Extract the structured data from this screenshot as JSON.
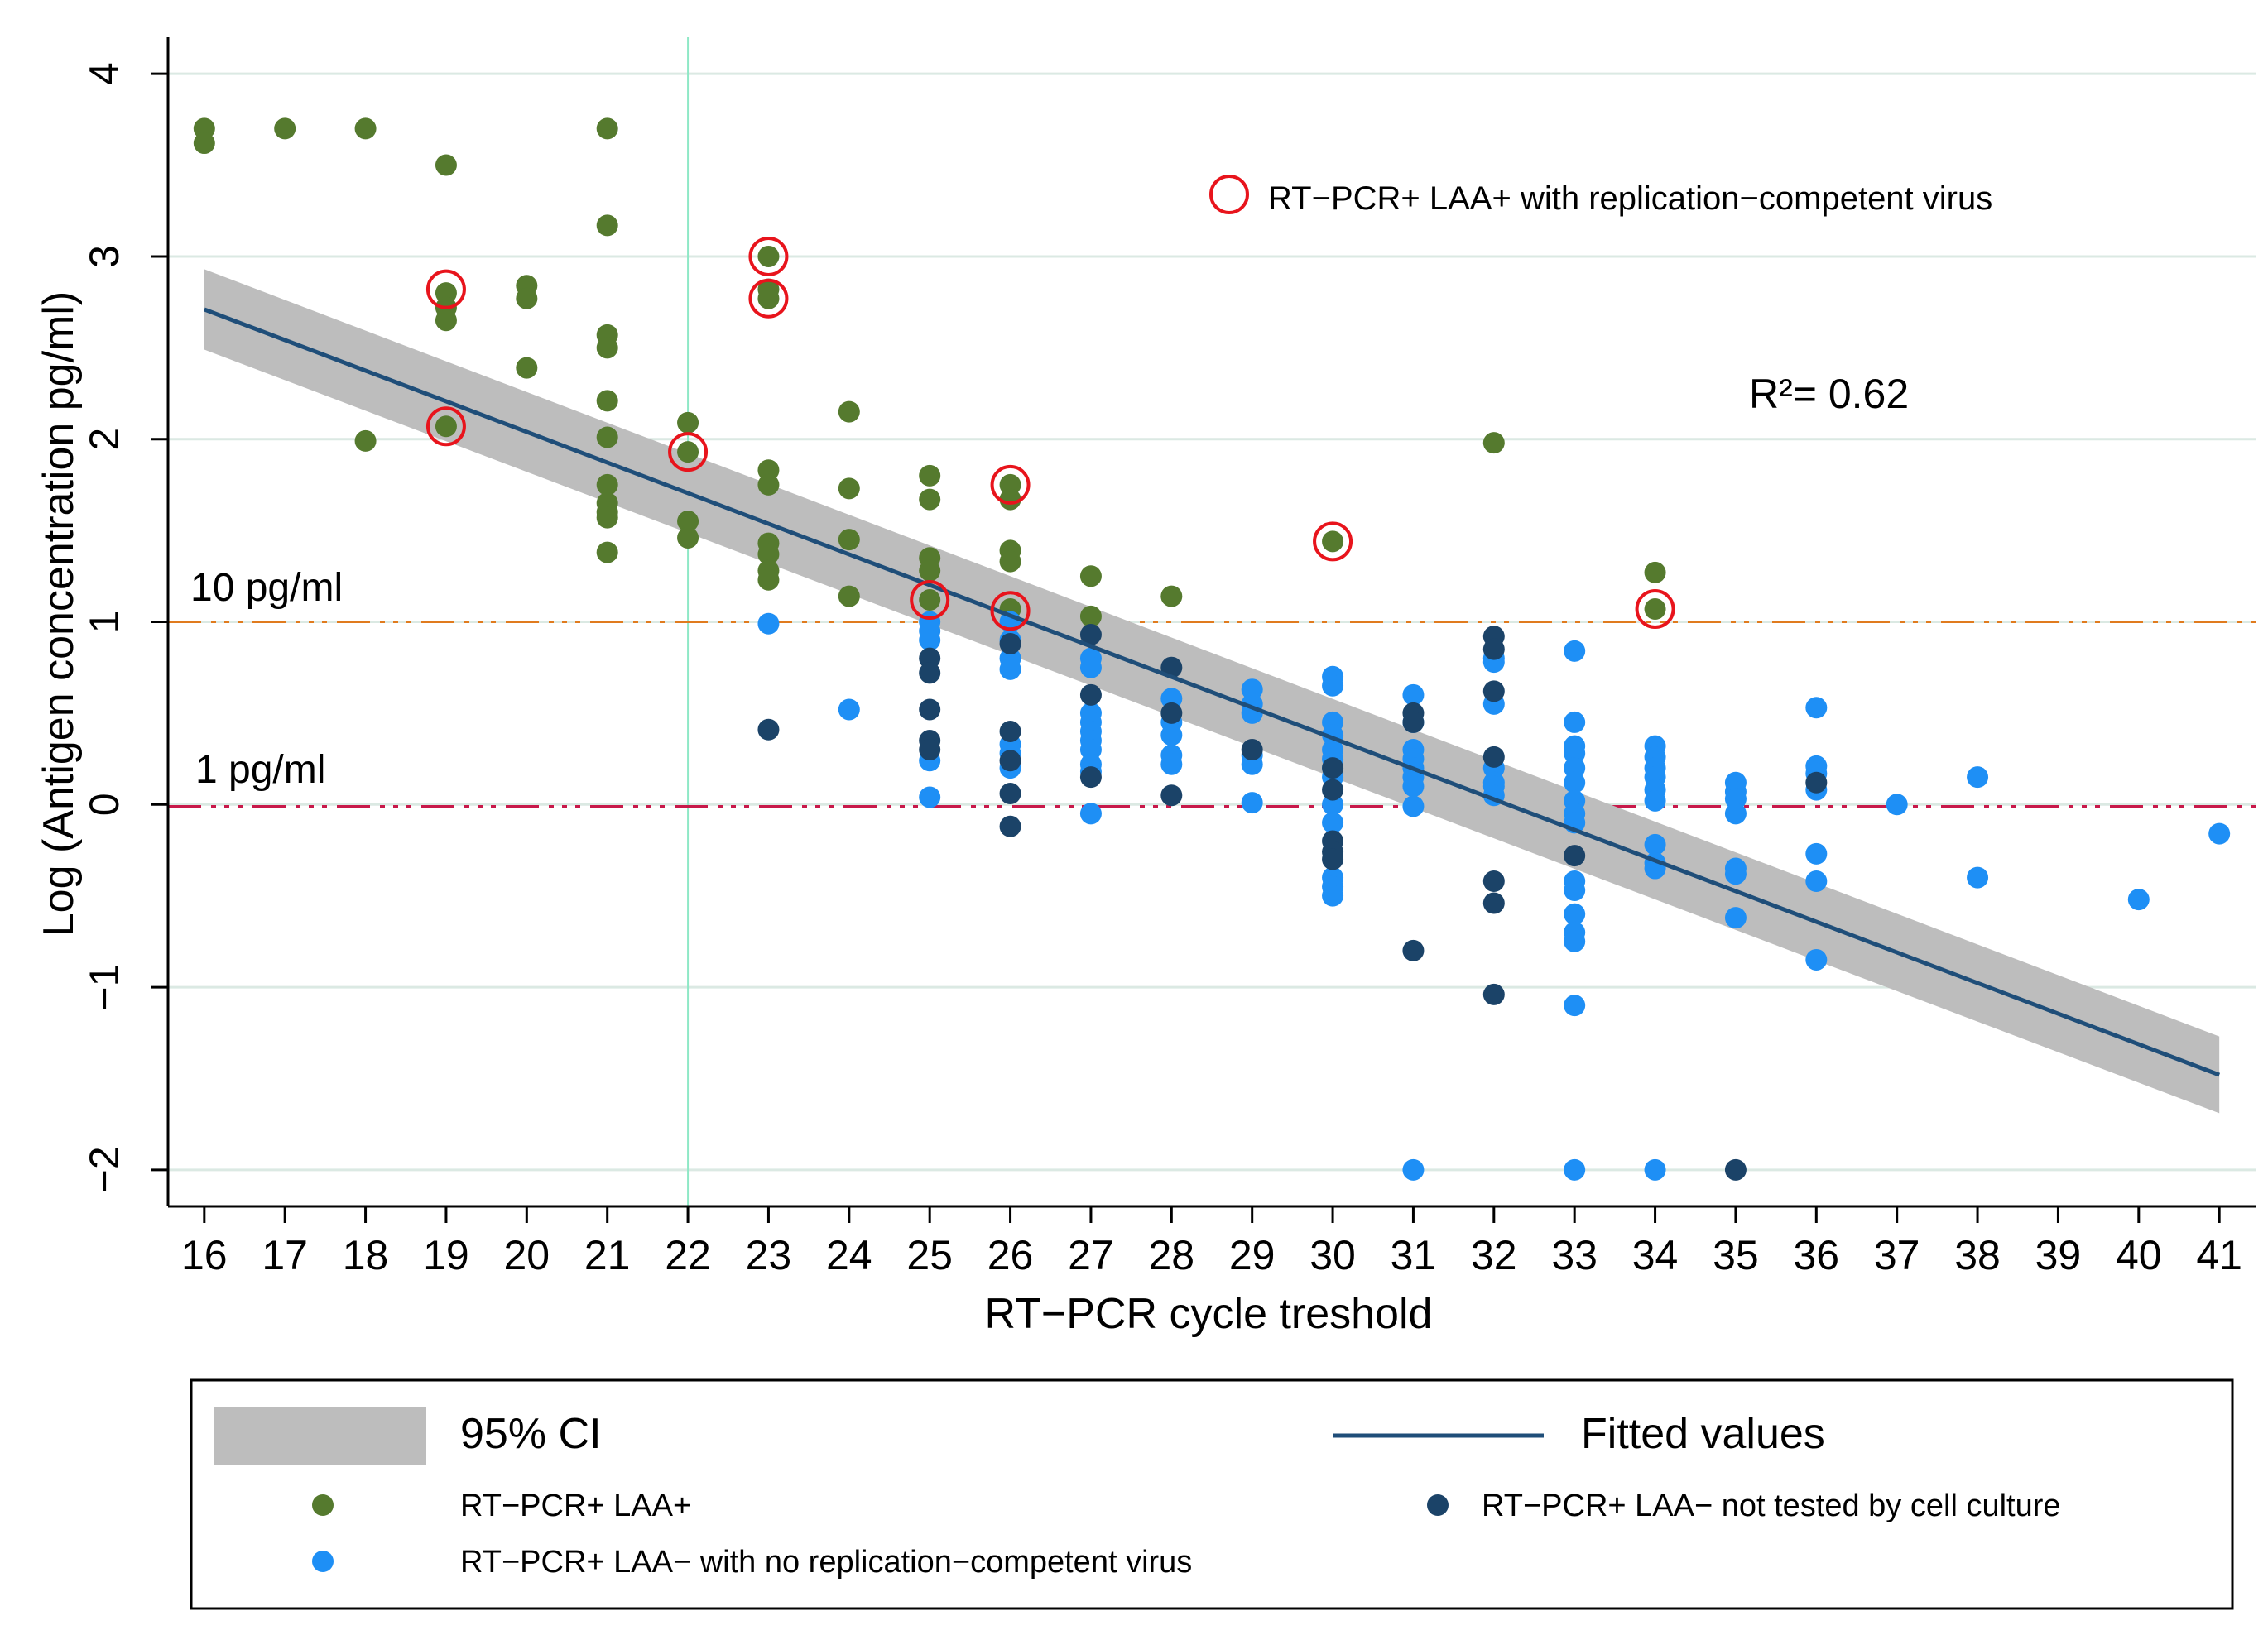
{
  "chart_data": {
    "type": "scatter",
    "title": "",
    "xlabel": "RT−PCR cycle  treshold",
    "ylabel": "Log (Antigen concentration pg/ml)",
    "xlim": [
      15.55,
      41.45
    ],
    "ylim": [
      -2.2,
      4.2
    ],
    "x_ticks": [
      16,
      17,
      18,
      19,
      20,
      21,
      22,
      23,
      24,
      25,
      26,
      27,
      28,
      29,
      30,
      31,
      32,
      33,
      34,
      35,
      36,
      37,
      38,
      39,
      40,
      41
    ],
    "x_tick_labels": [
      "16",
      "17",
      "18",
      "19",
      "20",
      "21",
      "22",
      "23",
      "24",
      "25",
      "26",
      "27",
      "28",
      "29",
      "30",
      "31",
      "32",
      "33",
      "34",
      "35",
      "36",
      "37",
      "38",
      "39",
      "40",
      "41"
    ],
    "y_ticks": [
      -2,
      -1,
      0,
      1,
      2,
      3,
      4
    ],
    "y_tick_labels": [
      "−2",
      "−1",
      "0",
      "1",
      "2",
      "3",
      "4"
    ],
    "grid": "horizontal",
    "reference_lines": {
      "vertical_x": 22,
      "h10": {
        "y": 1.0,
        "label": "10 pg/ml",
        "color": "#e07b1e"
      },
      "h1": {
        "y": -0.01,
        "label": "1 pg/ml",
        "color": "#c8194a"
      }
    },
    "fit": {
      "x": [
        16,
        41
      ],
      "y": [
        2.71,
        -1.48
      ],
      "ci_lower": [
        2.49,
        -1.69
      ],
      "ci_upper": [
        2.93,
        -1.27
      ],
      "color": "#1f4e79",
      "ci_color": "#bdbdbd"
    },
    "r2_text": "R²= 0.62",
    "annotation_text": "RT−PCR+ LAA+  with replication−competent virus",
    "series": [
      {
        "name": "RT−PCR+ LAA+",
        "color": "#557a2e",
        "points": [
          [
            16,
            3.7
          ],
          [
            16,
            3.62
          ],
          [
            17,
            3.7
          ],
          [
            18,
            3.7
          ],
          [
            18,
            1.99
          ],
          [
            19,
            3.5
          ],
          [
            19,
            2.8
          ],
          [
            19,
            2.72
          ],
          [
            19,
            2.65
          ],
          [
            19,
            2.07
          ],
          [
            20,
            2.84
          ],
          [
            20,
            2.77
          ],
          [
            20,
            2.39
          ],
          [
            21,
            3.7
          ],
          [
            21,
            3.17
          ],
          [
            21,
            2.57
          ],
          [
            21,
            2.5
          ],
          [
            21,
            2.21
          ],
          [
            21,
            2.01
          ],
          [
            21,
            1.75
          ],
          [
            21,
            1.65
          ],
          [
            21,
            1.6
          ],
          [
            21,
            1.57
          ],
          [
            21,
            1.38
          ],
          [
            22,
            2.09
          ],
          [
            22,
            1.93
          ],
          [
            22,
            1.55
          ],
          [
            22,
            1.46
          ],
          [
            23,
            3.0
          ],
          [
            23,
            2.82
          ],
          [
            23,
            2.77
          ],
          [
            23,
            1.83
          ],
          [
            23,
            1.75
          ],
          [
            23,
            1.43
          ],
          [
            23,
            1.37
          ],
          [
            23,
            1.28
          ],
          [
            23,
            1.23
          ],
          [
            24,
            2.15
          ],
          [
            24,
            1.73
          ],
          [
            24,
            1.45
          ],
          [
            24,
            1.14
          ],
          [
            25,
            1.8
          ],
          [
            25,
            1.67
          ],
          [
            25,
            1.35
          ],
          [
            25,
            1.28
          ],
          [
            25,
            1.12
          ],
          [
            26,
            1.75
          ],
          [
            26,
            1.67
          ],
          [
            26,
            1.39
          ],
          [
            26,
            1.33
          ],
          [
            26,
            1.07
          ],
          [
            27,
            1.25
          ],
          [
            27,
            1.03
          ],
          [
            28,
            1.14
          ],
          [
            30,
            1.44
          ],
          [
            32,
            1.98
          ],
          [
            34,
            1.27
          ],
          [
            34,
            1.07
          ]
        ]
      },
      {
        "name": "RT−PCR+ LAA− with no replication−competent virus",
        "color": "#1e8ff5",
        "points": [
          [
            23,
            0.99
          ],
          [
            24,
            0.52
          ],
          [
            25,
            1.0
          ],
          [
            25,
            0.95
          ],
          [
            25,
            0.9
          ],
          [
            25,
            0.24
          ],
          [
            25,
            0.04
          ],
          [
            26,
            1.0
          ],
          [
            26,
            0.9
          ],
          [
            26,
            0.8
          ],
          [
            26,
            0.74
          ],
          [
            26,
            0.33
          ],
          [
            26,
            0.28
          ],
          [
            26,
            0.2
          ],
          [
            27,
            0.8
          ],
          [
            27,
            0.75
          ],
          [
            27,
            0.5
          ],
          [
            27,
            0.45
          ],
          [
            27,
            0.4
          ],
          [
            27,
            0.35
          ],
          [
            27,
            0.3
          ],
          [
            27,
            0.22
          ],
          [
            27,
            0.18
          ],
          [
            27,
            -0.05
          ],
          [
            28,
            0.58
          ],
          [
            28,
            0.45
          ],
          [
            28,
            0.38
          ],
          [
            28,
            0.27
          ],
          [
            28,
            0.22
          ],
          [
            29,
            0.63
          ],
          [
            29,
            0.55
          ],
          [
            29,
            0.5
          ],
          [
            29,
            0.27
          ],
          [
            29,
            0.22
          ],
          [
            29,
            0.01
          ],
          [
            30,
            0.7
          ],
          [
            30,
            0.65
          ],
          [
            30,
            0.45
          ],
          [
            30,
            0.38
          ],
          [
            30,
            0.3
          ],
          [
            30,
            0.25
          ],
          [
            30,
            0.2
          ],
          [
            30,
            0.15
          ],
          [
            30,
            0.0
          ],
          [
            30,
            -0.1
          ],
          [
            30,
            -0.4
          ],
          [
            30,
            -0.45
          ],
          [
            30,
            -0.5
          ],
          [
            31,
            0.6
          ],
          [
            31,
            0.45
          ],
          [
            31,
            0.3
          ],
          [
            31,
            0.25
          ],
          [
            31,
            0.2
          ],
          [
            31,
            0.15
          ],
          [
            31,
            0.1
          ],
          [
            31,
            -0.01
          ],
          [
            31,
            -2.0
          ],
          [
            32,
            0.8
          ],
          [
            32,
            0.78
          ],
          [
            32,
            0.55
          ],
          [
            32,
            0.2
          ],
          [
            32,
            0.12
          ],
          [
            32,
            0.1
          ],
          [
            32,
            0.05
          ],
          [
            33,
            0.84
          ],
          [
            33,
            0.45
          ],
          [
            33,
            0.32
          ],
          [
            33,
            0.28
          ],
          [
            33,
            0.2
          ],
          [
            33,
            0.12
          ],
          [
            33,
            0.02
          ],
          [
            33,
            -0.05
          ],
          [
            33,
            -0.1
          ],
          [
            33,
            -0.42
          ],
          [
            33,
            -0.47
          ],
          [
            33,
            -0.6
          ],
          [
            33,
            -0.7
          ],
          [
            33,
            -0.75
          ],
          [
            33,
            -1.1
          ],
          [
            33,
            -2.0
          ],
          [
            34,
            0.32
          ],
          [
            34,
            0.26
          ],
          [
            34,
            0.2
          ],
          [
            34,
            0.15
          ],
          [
            34,
            0.08
          ],
          [
            34,
            0.02
          ],
          [
            34,
            -0.22
          ],
          [
            34,
            -0.32
          ],
          [
            34,
            -0.35
          ],
          [
            34,
            -2.0
          ],
          [
            35,
            0.12
          ],
          [
            35,
            0.07
          ],
          [
            35,
            0.03
          ],
          [
            35,
            -0.05
          ],
          [
            35,
            -0.35
          ],
          [
            35,
            -0.38
          ],
          [
            35,
            -0.62
          ],
          [
            36,
            0.53
          ],
          [
            36,
            0.21
          ],
          [
            36,
            0.17
          ],
          [
            36,
            0.08
          ],
          [
            36,
            -0.27
          ],
          [
            36,
            -0.42
          ],
          [
            36,
            -0.85
          ],
          [
            37,
            0.0
          ],
          [
            38,
            0.15
          ],
          [
            38,
            -0.4
          ],
          [
            40,
            -0.52
          ],
          [
            41,
            -0.16
          ]
        ]
      },
      {
        "name": "RT−PCR+ LAA− not tested by cell culture",
        "color": "#1b4368",
        "points": [
          [
            23,
            0.41
          ],
          [
            25,
            0.8
          ],
          [
            25,
            0.72
          ],
          [
            25,
            0.52
          ],
          [
            25,
            0.35
          ],
          [
            25,
            0.3
          ],
          [
            26,
            0.88
          ],
          [
            26,
            0.4
          ],
          [
            26,
            0.24
          ],
          [
            26,
            0.06
          ],
          [
            26,
            -0.12
          ],
          [
            27,
            0.93
          ],
          [
            27,
            0.6
          ],
          [
            27,
            0.15
          ],
          [
            28,
            0.75
          ],
          [
            28,
            0.5
          ],
          [
            28,
            0.05
          ],
          [
            29,
            0.3
          ],
          [
            30,
            0.2
          ],
          [
            30,
            0.08
          ],
          [
            30,
            -0.2
          ],
          [
            30,
            -0.26
          ],
          [
            30,
            -0.3
          ],
          [
            31,
            0.5
          ],
          [
            31,
            0.45
          ],
          [
            31,
            -0.8
          ],
          [
            32,
            0.92
          ],
          [
            32,
            0.85
          ],
          [
            32,
            0.62
          ],
          [
            32,
            0.26
          ],
          [
            32,
            -0.42
          ],
          [
            32,
            -0.54
          ],
          [
            32,
            -1.04
          ],
          [
            33,
            -0.28
          ],
          [
            35,
            -2.0
          ],
          [
            36,
            0.12
          ]
        ]
      }
    ],
    "circled_points": [
      [
        19,
        2.82
      ],
      [
        19,
        2.07
      ],
      [
        22,
        1.93
      ],
      [
        23,
        3.0
      ],
      [
        23,
        2.77
      ],
      [
        25,
        1.12
      ],
      [
        26,
        1.75
      ],
      [
        26,
        1.06
      ],
      [
        30,
        1.44
      ],
      [
        34,
        1.07
      ]
    ],
    "legend": {
      "position": "bottom",
      "ci_label": "95% CI",
      "fit_label": "Fitted values",
      "laa_pos_label": "RT−PCR+ LAA+",
      "not_tested_label": "RT−PCR+ LAA− not tested by cell culture",
      "no_rep_label": "RT−PCR+ LAA− with no replication−competent virus"
    }
  }
}
